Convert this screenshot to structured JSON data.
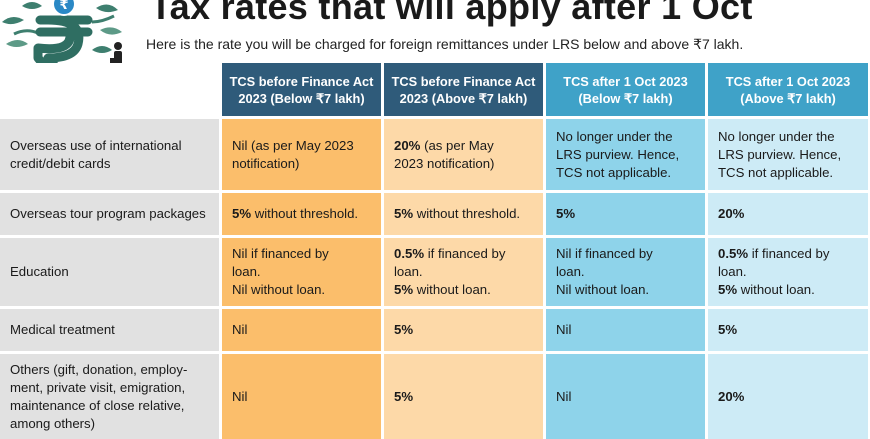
{
  "header": {
    "title": "Tax rates that will apply after 1 Oct",
    "subtitle": "Here is the rate you will be charged for foreign remittances under LRS below and above ₹7 lakh."
  },
  "illustration": {
    "icon": "rupee-tree-icon",
    "colors": {
      "tree": "#3e7f6f",
      "coin": "#2a88c5"
    }
  },
  "table": {
    "columns": [
      {
        "line1": "TCS before Finance Act",
        "line2": "2023 (Below ₹7 lakh)"
      },
      {
        "line1": "TCS before Finance Act",
        "line2": "2023 (Above ₹7 lakh)"
      },
      {
        "line1": "TCS after 1 Oct 2023",
        "line2": "(Below ₹7 lakh)"
      },
      {
        "line1": "TCS  after 1 Oct 2023",
        "line2": "(Above ₹7 lakh)"
      }
    ],
    "rows": [
      {
        "label": [
          "Overseas use of international",
          "credit/debit cards"
        ],
        "cells": [
          {
            "b": "",
            "t": [
              "Nil (as per May 2023",
              "notification)"
            ]
          },
          {
            "b": "20%",
            "t": [
              " (as per May",
              "2023 notification)"
            ]
          },
          {
            "b": "",
            "t": [
              "No longer under the",
              "LRS purview. Hence,",
              "TCS not applicable."
            ]
          },
          {
            "b": "",
            "t": [
              "No longer under the",
              "LRS purview. Hence,",
              "TCS not applicable."
            ]
          }
        ]
      },
      {
        "label": [
          "Overseas tour program packages"
        ],
        "cells": [
          {
            "b": "5%",
            "t": [
              " without threshold."
            ]
          },
          {
            "b": "5%",
            "t": [
              " without threshold."
            ]
          },
          {
            "b": "5%",
            "t": [
              ""
            ]
          },
          {
            "b": "20%",
            "t": [
              ""
            ]
          }
        ]
      },
      {
        "label": [
          "Education"
        ],
        "cells": [
          {
            "b": "",
            "t": [
              "Nil if financed by",
              "loan.",
              "Nil without loan."
            ]
          },
          {
            "b": "0.5%",
            "t": [
              " if financed by",
              "loan."
            ],
            "b2": "5%",
            "t2": " without loan."
          },
          {
            "b": "",
            "t": [
              "Nil if financed by",
              "loan.",
              "Nil without loan."
            ]
          },
          {
            "b": "0.5%",
            "t": [
              " if financed by",
              "loan."
            ],
            "b2": "5%",
            "t2": " without loan."
          }
        ]
      },
      {
        "label": [
          "Medical treatment"
        ],
        "cells": [
          {
            "b": "",
            "t": [
              "Nil"
            ]
          },
          {
            "b": "5%",
            "t": [
              ""
            ]
          },
          {
            "b": "",
            "t": [
              "Nil"
            ]
          },
          {
            "b": "5%",
            "t": [
              ""
            ]
          }
        ]
      },
      {
        "label": [
          "Others (gift, donation, employ-",
          "ment, private visit, emigration,",
          "maintenance of close relative,",
          "among others)"
        ],
        "cells": [
          {
            "b": "",
            "t": [
              "Nil"
            ]
          },
          {
            "b": "5%",
            "t": [
              ""
            ]
          },
          {
            "b": "",
            "t": [
              "Nil"
            ]
          },
          {
            "b": "20%",
            "t": [
              ""
            ]
          }
        ]
      }
    ]
  }
}
